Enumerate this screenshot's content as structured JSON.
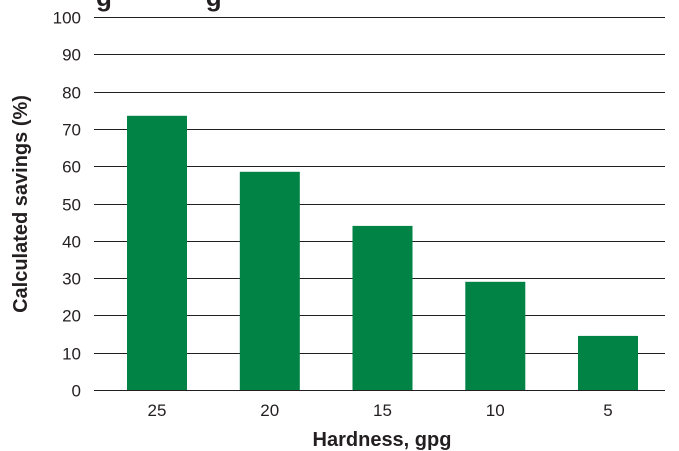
{
  "chart_data": {
    "type": "bar",
    "title": "g             g",
    "xlabel": "Hardness, gpg",
    "ylabel": "Calculated savings (%)",
    "categories": [
      "25",
      "20",
      "15",
      "10",
      "5"
    ],
    "values": [
      73.5,
      58.5,
      44,
      29,
      14.5
    ],
    "ylim": [
      0,
      100
    ],
    "yticks": [
      0,
      10,
      20,
      30,
      40,
      50,
      60,
      70,
      80,
      90,
      100
    ],
    "grid": true,
    "legend": "none",
    "bar_color": "#008344",
    "grid_color": "#231f20",
    "text_color": "#231f20"
  }
}
